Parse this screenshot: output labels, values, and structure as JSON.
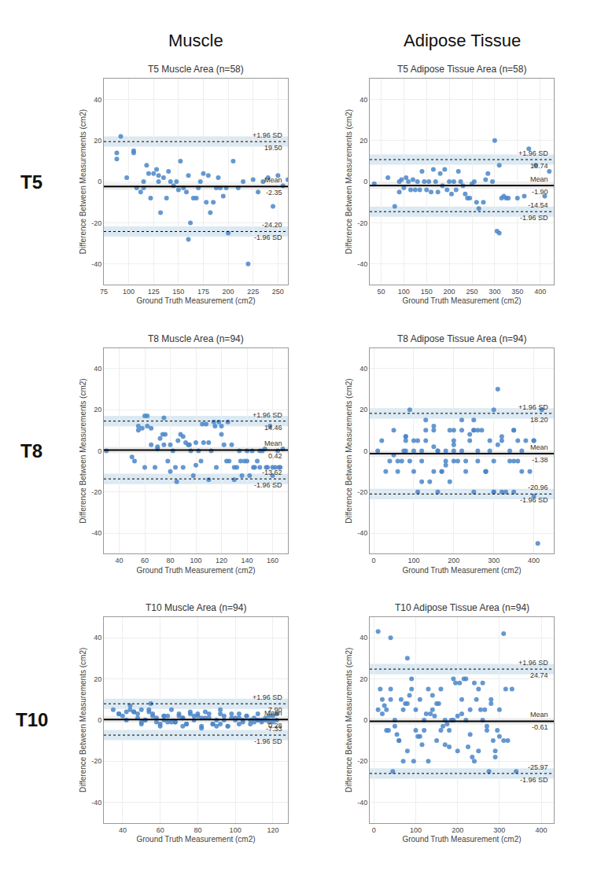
{
  "col_titles": [
    "Muscle",
    "Adipose Tissue"
  ],
  "row_labels": [
    "T5",
    "T8",
    "T10"
  ],
  "chart_data": [
    {
      "type": "scatter",
      "title": "T5 Muscle Area (n=58)",
      "x_label": "Ground Truth Measurement (cm2)",
      "y_label": "Difference Between Measurements (cm2)",
      "color": "#4a86c8",
      "grid": true,
      "xlim": [
        75,
        260
      ],
      "xticks": [
        75,
        100,
        125,
        150,
        175,
        200,
        225,
        250
      ],
      "ylim": [
        -50,
        50
      ],
      "yticks": [
        -40,
        -20,
        0,
        20,
        40
      ],
      "x": [
        88,
        92,
        98,
        105,
        108,
        112,
        115,
        118,
        120,
        122,
        125,
        128,
        130,
        132,
        135,
        138,
        140,
        142,
        145,
        148,
        150,
        152,
        155,
        158,
        160,
        162,
        165,
        168,
        170,
        172,
        175,
        178,
        180,
        182,
        185,
        188,
        190,
        195,
        198,
        200,
        205,
        210,
        215,
        220,
        225,
        230,
        235,
        240,
        245,
        250,
        255,
        260,
        88,
        105,
        130,
        115,
        160,
        192
      ],
      "values": [
        11,
        22,
        2,
        14,
        -3,
        -5,
        0,
        8,
        4,
        -8,
        4,
        6,
        0,
        -15,
        2,
        -8,
        5,
        0,
        -2,
        0,
        -4,
        10,
        -3,
        -5,
        3,
        -20,
        -8,
        -8,
        -3,
        0,
        4,
        -10,
        3,
        -15,
        -10,
        -3,
        2,
        -7,
        -3,
        -25,
        10,
        -3,
        0,
        -40,
        1,
        -5,
        0,
        2,
        -12,
        3,
        -2,
        1,
        14,
        15,
        3,
        -3,
        -28,
        -3
      ],
      "reference_lines": [
        {
          "label": "+1.96 SD",
          "value": 19.5,
          "value_label": "19.50",
          "line_style": "dotted",
          "color": "#000000"
        },
        {
          "label": "Mean",
          "value": -2.35,
          "value_label": "-2.35",
          "line_style": "solid",
          "color": "#000000"
        },
        {
          "label": "-1.96 SD",
          "value": -24.2,
          "value_label": "-24.20",
          "line_style": "dotted",
          "color": "#000000"
        }
      ]
    },
    {
      "type": "scatter",
      "title": "T5 Adipose Tissue Area (n=58)",
      "x_label": "Ground Truth Measurement (cm2)",
      "y_label": "Difference Between Measurements (cm2)",
      "color": "#4a86c8",
      "grid": true,
      "xlim": [
        25,
        430
      ],
      "xticks": [
        50,
        100,
        150,
        200,
        250,
        300,
        350,
        400
      ],
      "ylim": [
        -50,
        50
      ],
      "yticks": [
        -40,
        -20,
        0,
        20,
        40
      ],
      "x": [
        35,
        65,
        80,
        90,
        95,
        100,
        105,
        110,
        115,
        120,
        125,
        130,
        135,
        140,
        145,
        150,
        155,
        160,
        165,
        170,
        175,
        180,
        185,
        190,
        195,
        200,
        205,
        210,
        215,
        220,
        225,
        230,
        235,
        240,
        245,
        250,
        255,
        260,
        265,
        275,
        280,
        285,
        295,
        300,
        305,
        310,
        315,
        320,
        325,
        330,
        350,
        365,
        375,
        390,
        410,
        420,
        90,
        310
      ],
      "values": [
        -1,
        2,
        -12,
        -5,
        1,
        -3,
        2,
        0,
        -4,
        1,
        -4,
        0,
        -4,
        5,
        0,
        -4,
        0,
        -5,
        6,
        0,
        -5,
        4,
        -2,
        6,
        -4,
        0,
        -6,
        0,
        -4,
        5,
        0,
        -2,
        -6,
        -8,
        -8,
        -1,
        0,
        -10,
        -13,
        -10,
        1,
        4,
        0,
        20,
        -24,
        8,
        -8,
        -7,
        -8,
        -8,
        -8,
        -7,
        16,
        8,
        -7,
        5,
        0,
        -25
      ],
      "reference_lines": [
        {
          "label": "+1.96 SD",
          "value": 10.74,
          "value_label": "10.74",
          "line_style": "dotted",
          "color": "#000000"
        },
        {
          "label": "Mean",
          "value": -1.9,
          "value_label": "-1.90",
          "line_style": "solid",
          "color": "#000000"
        },
        {
          "label": "-1.96 SD",
          "value": -14.54,
          "value_label": "-14.54",
          "line_style": "dotted",
          "color": "#000000"
        }
      ]
    },
    {
      "type": "scatter",
      "title": "T8 Muscle Area (n=94)",
      "x_label": "Ground Truth Measurement (cm2)",
      "y_label": "Difference Between Measurements (cm2)",
      "color": "#4a86c8",
      "grid": true,
      "xlim": [
        28,
        172
      ],
      "xticks": [
        40,
        60,
        80,
        100,
        120,
        140,
        160
      ],
      "ylim": [
        -50,
        50
      ],
      "yticks": [
        -40,
        -20,
        0,
        20,
        40
      ],
      "x": [
        30,
        52,
        55,
        58,
        60,
        62,
        65,
        68,
        70,
        72,
        74,
        76,
        78,
        80,
        82,
        84,
        86,
        88,
        90,
        92,
        94,
        96,
        98,
        100,
        102,
        104,
        106,
        108,
        110,
        112,
        114,
        116,
        118,
        120,
        122,
        124,
        126,
        128,
        130,
        132,
        134,
        136,
        138,
        140,
        142,
        144,
        146,
        148,
        150,
        152,
        154,
        156,
        158,
        160,
        162,
        164,
        166,
        168,
        55,
        65,
        75,
        85,
        95,
        105,
        115,
        125,
        135,
        145,
        155,
        165,
        50,
        70,
        90,
        100,
        110,
        120,
        130,
        140,
        150,
        160,
        62,
        80,
        60,
        75
      ],
      "values": [
        0,
        -5,
        10,
        11,
        -8,
        12,
        11,
        -8,
        1,
        6,
        8,
        8,
        -5,
        3,
        0,
        -8,
        5,
        8,
        7,
        4,
        3,
        0,
        -12,
        4,
        0,
        -5,
        4,
        13,
        4,
        0,
        14,
        -8,
        14,
        8,
        3,
        -5,
        -5,
        3,
        -8,
        -8,
        0,
        -12,
        -5,
        -5,
        -12,
        0,
        -8,
        -5,
        0,
        0,
        1,
        -8,
        12,
        -12,
        -8,
        0,
        -8,
        1,
        12,
        3,
        3,
        -15,
        3,
        13,
        12,
        14,
        -5,
        -8,
        -8,
        -8,
        -3,
        2,
        -8,
        -7,
        -14,
        12,
        -14,
        0,
        -8,
        -8,
        17,
        -10,
        17,
        16
      ],
      "reference_lines": [
        {
          "label": "+1.96 SD",
          "value": 14.46,
          "value_label": "14.46",
          "line_style": "dotted",
          "color": "#000000"
        },
        {
          "label": "Mean",
          "value": 0.42,
          "value_label": "0.42",
          "line_style": "solid",
          "color": "#000000"
        },
        {
          "label": "-1.96 SD",
          "value": -13.62,
          "value_label": "-13.62",
          "line_style": "dotted",
          "color": "#000000"
        }
      ]
    },
    {
      "type": "scatter",
      "title": "T8 Adipose Tissue Area (n=94)",
      "x_label": "Ground Truth Measurement (cm2)",
      "y_label": "Difference Between Measurements (cm2)",
      "color": "#4a86c8",
      "grid": true,
      "xlim": [
        -10,
        450
      ],
      "xticks": [
        0,
        100,
        200,
        300,
        400
      ],
      "ylim": [
        -50,
        50
      ],
      "yticks": [
        -40,
        -20,
        0,
        20,
        40
      ],
      "x": [
        10,
        20,
        30,
        40,
        50,
        60,
        70,
        80,
        90,
        100,
        110,
        120,
        130,
        140,
        150,
        160,
        170,
        180,
        190,
        200,
        210,
        220,
        230,
        240,
        250,
        260,
        270,
        280,
        290,
        300,
        310,
        320,
        330,
        340,
        350,
        360,
        370,
        380,
        390,
        400,
        410,
        420,
        50,
        80,
        100,
        120,
        150,
        180,
        200,
        220,
        250,
        280,
        300,
        320,
        350,
        370,
        400,
        60,
        90,
        130,
        160,
        190,
        220,
        260,
        290,
        320,
        80,
        150,
        200,
        250,
        300,
        350,
        100,
        180,
        260,
        340,
        130,
        200,
        280,
        360,
        150,
        240,
        310,
        75,
        110,
        170,
        230,
        80,
        120,
        160,
        200,
        250,
        300,
        350,
        400
      ],
      "values": [
        0,
        5,
        -10,
        -5,
        10,
        -10,
        -5,
        0,
        -5,
        5,
        -20,
        0,
        10,
        -15,
        10,
        0,
        -10,
        -5,
        10,
        5,
        -5,
        0,
        -10,
        5,
        -20,
        0,
        10,
        -10,
        5,
        -20,
        30,
        5,
        -20,
        0,
        10,
        -5,
        0,
        5,
        -10,
        5,
        -45,
        20,
        -2,
        7,
        0,
        -5,
        12,
        -7,
        3,
        15,
        10,
        -10,
        20,
        7,
        -5,
        -10,
        5,
        -5,
        20,
        15,
        0,
        -15,
        10,
        -5,
        0,
        -20,
        5,
        -10,
        0,
        15,
        -5,
        10,
        -10,
        0,
        10,
        -5,
        5,
        10,
        -10,
        5,
        2,
        8,
        3,
        0,
        5,
        -10,
        -5,
        7,
        -15,
        -20,
        -5,
        10,
        -20,
        -20,
        -22
      ],
      "reference_lines": [
        {
          "label": "+1.96 SD",
          "value": 18.2,
          "value_label": "18.20",
          "line_style": "dotted",
          "color": "#000000"
        },
        {
          "label": "Mean",
          "value": -1.38,
          "value_label": "-1.38",
          "line_style": "solid",
          "color": "#000000"
        },
        {
          "label": "-1.96 SD",
          "value": -20.96,
          "value_label": "-20.96",
          "line_style": "dotted",
          "color": "#000000"
        }
      ]
    },
    {
      "type": "scatter",
      "title": "T10 Muscle Area (n=94)",
      "x_label": "Ground Truth Measurement (cm2)",
      "y_label": "Difference Between Measurements (cm2)",
      "color": "#4a86c8",
      "grid": true,
      "xlim": [
        30,
        128
      ],
      "xticks": [
        40,
        60,
        80,
        100,
        120
      ],
      "ylim": [
        -50,
        50
      ],
      "yticks": [
        -40,
        -20,
        0,
        20,
        40
      ],
      "x": [
        35,
        38,
        40,
        42,
        44,
        46,
        48,
        50,
        52,
        54,
        56,
        58,
        60,
        62,
        64,
        66,
        68,
        70,
        72,
        74,
        76,
        78,
        80,
        82,
        84,
        86,
        88,
        90,
        92,
        94,
        96,
        98,
        100,
        102,
        104,
        106,
        108,
        110,
        112,
        114,
        116,
        118,
        120,
        122,
        42,
        52,
        62,
        72,
        82,
        92,
        102,
        112,
        44,
        56,
        68,
        80,
        92,
        104,
        116,
        46,
        58,
        70,
        82,
        94,
        106,
        118,
        48,
        60,
        72,
        84,
        96,
        108,
        120,
        50,
        64,
        76,
        88,
        100,
        112,
        54,
        66,
        78,
        90,
        102,
        114,
        38,
        50,
        62,
        74,
        86,
        98,
        110,
        122,
        55
      ],
      "values": [
        5,
        3,
        2,
        0,
        7,
        4,
        1,
        -2,
        0,
        5,
        3,
        1,
        -3,
        0,
        2,
        5,
        -1,
        3,
        1,
        -2,
        4,
        0,
        2,
        -4,
        1,
        3,
        -2,
        0,
        5,
        2,
        -3,
        1,
        0,
        3,
        -1,
        2,
        -2,
        1,
        3,
        -1,
        0,
        2,
        -1,
        3,
        4,
        0,
        2,
        -3,
        1,
        3,
        -2,
        0,
        5,
        2,
        -1,
        3,
        -2,
        0,
        1,
        4,
        -1,
        2,
        -3,
        0,
        2,
        -1,
        3,
        -2,
        1,
        4,
        -3,
        0,
        2,
        5,
        -1,
        3,
        -2,
        1,
        0,
        4,
        -1,
        2,
        -3,
        1,
        0,
        3,
        -1,
        2,
        -2,
        1,
        3,
        -1,
        0,
        8
      ],
      "reference_lines": [
        {
          "label": "+1.96 SD",
          "value": 7.9,
          "value_label": "7.90",
          "line_style": "dotted",
          "color": "#000000"
        },
        {
          "label": "Mean",
          "value": 0.28,
          "value_label": "0.28",
          "line_style": "solid",
          "color": "#000000"
        },
        {
          "label": "-1.96 SD",
          "value": -7.33,
          "value_label": "-7.33",
          "line_style": "dotted",
          "color": "#000000"
        }
      ]
    },
    {
      "type": "scatter",
      "title": "T10 Adipose Tissue Area (n=94)",
      "x_label": "Ground Truth Measurement (cm2)",
      "y_label": "Difference Between Measurements (cm2)",
      "color": "#4a86c8",
      "grid": true,
      "xlim": [
        -10,
        430
      ],
      "xticks": [
        0,
        100,
        200,
        300,
        400
      ],
      "ylim": [
        -50,
        50
      ],
      "yticks": [
        -40,
        -20,
        0,
        20,
        40
      ],
      "x": [
        10,
        20,
        30,
        40,
        50,
        60,
        70,
        80,
        90,
        100,
        110,
        120,
        130,
        140,
        150,
        160,
        170,
        180,
        190,
        200,
        210,
        220,
        230,
        240,
        250,
        260,
        270,
        280,
        290,
        300,
        310,
        320,
        330,
        340,
        20,
        50,
        80,
        110,
        140,
        170,
        200,
        230,
        260,
        290,
        30,
        60,
        90,
        120,
        150,
        180,
        210,
        240,
        270,
        300,
        40,
        70,
        100,
        130,
        160,
        190,
        220,
        250,
        280,
        310,
        25,
        55,
        85,
        115,
        145,
        175,
        205,
        235,
        265,
        295,
        15,
        45,
        75,
        105,
        135,
        165,
        195,
        225,
        255,
        285,
        315,
        35,
        65,
        95,
        125,
        155,
        185,
        215,
        245,
        275,
        10,
        40,
        80
      ],
      "values": [
        5,
        10,
        -5,
        15,
        0,
        -10,
        5,
        -15,
        20,
        -5,
        10,
        0,
        -20,
        5,
        -10,
        15,
        0,
        -5,
        20,
        -15,
        10,
        0,
        5,
        -20,
        15,
        0,
        -5,
        10,
        -15,
        5,
        42,
        -10,
        15,
        -25,
        3,
        -3,
        8,
        -8,
        12,
        -12,
        2,
        -7,
        18,
        -18,
        5,
        -10,
        15,
        -5,
        8,
        -13,
        3,
        18,
        -3,
        -8,
        10,
        -20,
        5,
        15,
        -5,
        0,
        20,
        -15,
        8,
        -10,
        7,
        -7,
        12,
        -12,
        2,
        -2,
        18,
        -18,
        5,
        -5,
        15,
        -25,
        8,
        -8,
        3,
        -3,
        18,
        -13,
        5,
        -10,
        15,
        -5,
        10,
        -20,
        3,
        8,
        0,
        20,
        10,
        -25,
        43,
        40,
        30
      ],
      "reference_lines": [
        {
          "label": "+1.96 SD",
          "value": 24.74,
          "value_label": "24.74",
          "line_style": "dotted",
          "color": "#000000"
        },
        {
          "label": "Mean",
          "value": -0.61,
          "value_label": "-0.61",
          "line_style": "solid",
          "color": "#000000"
        },
        {
          "label": "-1.96 SD",
          "value": -25.97,
          "value_label": "-25.97",
          "line_style": "dotted",
          "color": "#000000"
        }
      ]
    }
  ]
}
